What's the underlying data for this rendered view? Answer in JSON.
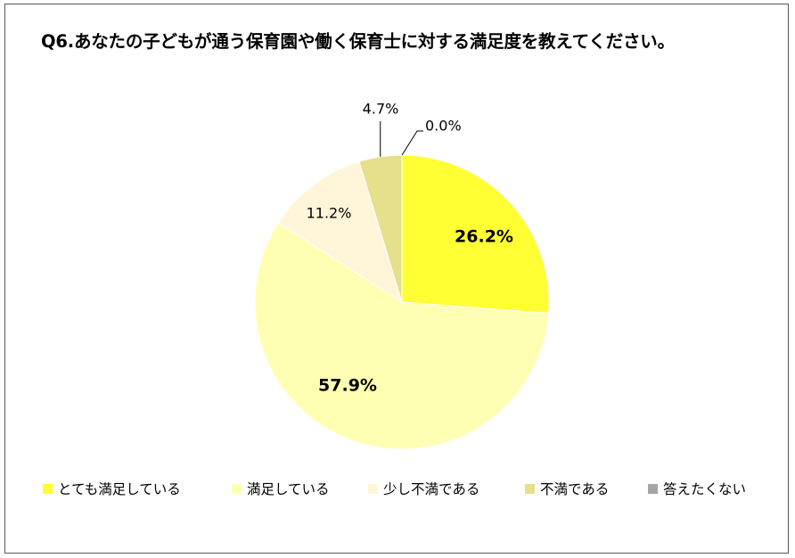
{
  "chart": {
    "title": "Q6.あなたの子どもが通う保育園や働く保育士に対する満足度を教えてください。"
  },
  "chart_data": {
    "type": "pie",
    "title": "Q6.あなたの子どもが通う保育園や働く保育士に対する満足度を教えてください。",
    "start_angle_deg": 0,
    "direction": "clockwise",
    "legend_position": "bottom",
    "slices": [
      {
        "label": "とても満足している",
        "value": 26.2,
        "value_label": "26.2%",
        "color": "#FFFF33",
        "label_bold": true
      },
      {
        "label": "満足している",
        "value": 57.9,
        "value_label": "57.9%",
        "color": "#FFFFB3",
        "label_bold": true
      },
      {
        "label": "少し不満である",
        "value": 11.2,
        "value_label": "11.2%",
        "color": "#FFF5D9",
        "label_bold": false
      },
      {
        "label": "不満である",
        "value": 4.7,
        "value_label": "4.7%",
        "color": "#E5E08C",
        "label_bold": false
      },
      {
        "label": "答えたくない",
        "value": 0.0,
        "value_label": "0.0%",
        "color": "#A6A6A6",
        "label_bold": false
      }
    ]
  }
}
